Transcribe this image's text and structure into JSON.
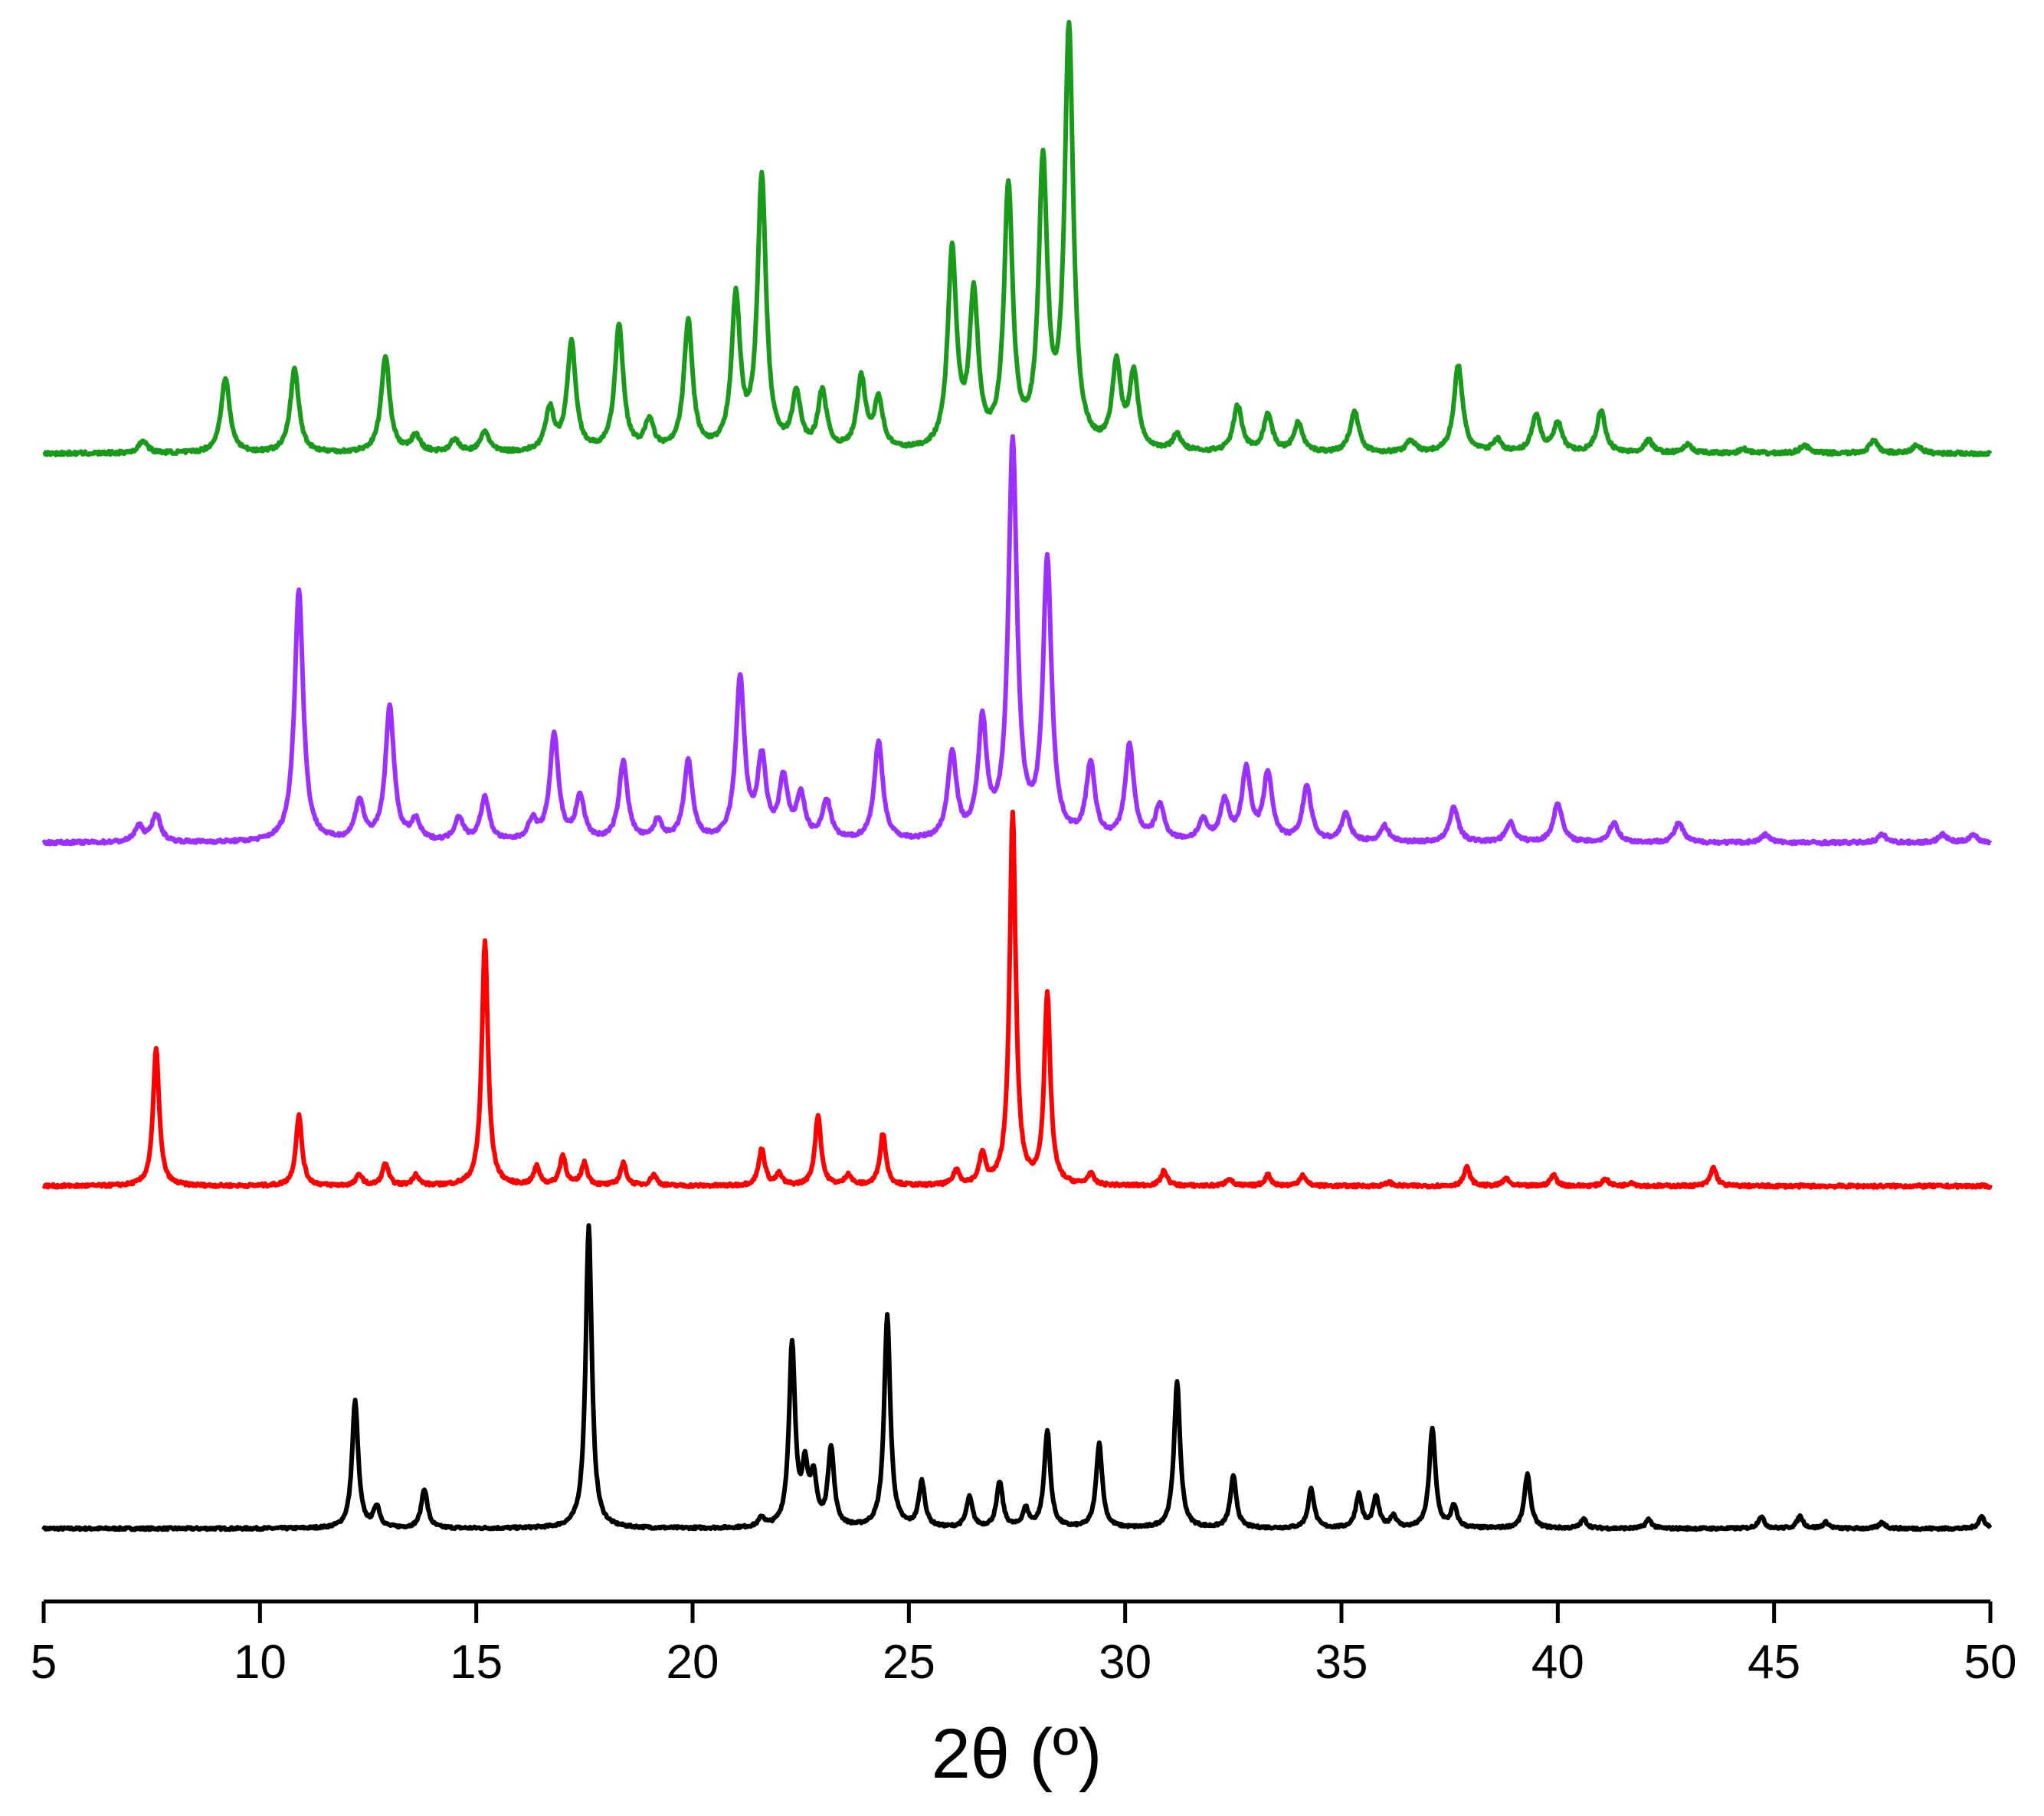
{
  "chart_data": {
    "type": "line",
    "title": "",
    "xlabel": "2θ (º)",
    "ylabel": "",
    "xlim": [
      5,
      50
    ],
    "xticks": [
      "5",
      "10",
      "15",
      "20",
      "25",
      "30",
      "35",
      "40",
      "45",
      "50"
    ],
    "grid": false,
    "legend": "none",
    "y_units": "relative intensity (0 = trace baseline, 1 = tallest peak), traces stacked with vertical offsets",
    "series": [
      {
        "color": "#000000",
        "baseline": 0.0,
        "peaks": [
          [
            12.2,
            0.42
          ],
          [
            12.7,
            0.07
          ],
          [
            13.8,
            0.13
          ],
          [
            17.6,
            1.0
          ],
          [
            21.6,
            0.03
          ],
          [
            22.3,
            0.6
          ],
          [
            22.6,
            0.18
          ],
          [
            22.8,
            0.15
          ],
          [
            23.2,
            0.26
          ],
          [
            24.5,
            0.7
          ],
          [
            25.3,
            0.15
          ],
          [
            26.4,
            0.1
          ],
          [
            27.1,
            0.15
          ],
          [
            27.7,
            0.06
          ],
          [
            28.2,
            0.32
          ],
          [
            29.4,
            0.28
          ],
          [
            31.2,
            0.48
          ],
          [
            32.5,
            0.17
          ],
          [
            34.3,
            0.13
          ],
          [
            35.4,
            0.11
          ],
          [
            35.8,
            0.1
          ],
          [
            36.2,
            0.04
          ],
          [
            37.1,
            0.33
          ],
          [
            37.6,
            0.07
          ],
          [
            39.3,
            0.18
          ],
          [
            40.6,
            0.03
          ],
          [
            42.1,
            0.03
          ],
          [
            44.7,
            0.04
          ],
          [
            45.6,
            0.04
          ],
          [
            46.2,
            0.02
          ],
          [
            47.5,
            0.02
          ],
          [
            49.8,
            0.04
          ]
        ]
      },
      {
        "color": "#ff0000",
        "baseline": 0.0,
        "peaks": [
          [
            7.6,
            0.37
          ],
          [
            10.9,
            0.19
          ],
          [
            12.3,
            0.03
          ],
          [
            12.9,
            0.06
          ],
          [
            13.6,
            0.03
          ],
          [
            15.2,
            0.66
          ],
          [
            16.4,
            0.05
          ],
          [
            17.0,
            0.08
          ],
          [
            17.5,
            0.06
          ],
          [
            18.4,
            0.06
          ],
          [
            19.1,
            0.03
          ],
          [
            21.6,
            0.1
          ],
          [
            22.0,
            0.03
          ],
          [
            22.9,
            0.19
          ],
          [
            23.6,
            0.03
          ],
          [
            24.4,
            0.14
          ],
          [
            26.1,
            0.04
          ],
          [
            26.7,
            0.08
          ],
          [
            27.4,
            1.0
          ],
          [
            28.2,
            0.51
          ],
          [
            29.2,
            0.03
          ],
          [
            30.9,
            0.04
          ],
          [
            32.4,
            0.02
          ],
          [
            33.3,
            0.03
          ],
          [
            34.1,
            0.03
          ],
          [
            36.1,
            0.01
          ],
          [
            37.9,
            0.05
          ],
          [
            38.8,
            0.02
          ],
          [
            39.9,
            0.03
          ],
          [
            41.1,
            0.02
          ],
          [
            41.7,
            0.01
          ],
          [
            43.6,
            0.05
          ]
        ]
      },
      {
        "color": "#9b30ff",
        "baseline": 0.0,
        "peaks": [
          [
            7.2,
            0.04
          ],
          [
            7.6,
            0.07
          ],
          [
            10.9,
            0.64
          ],
          [
            12.3,
            0.1
          ],
          [
            13.0,
            0.34
          ],
          [
            13.6,
            0.05
          ],
          [
            14.6,
            0.06
          ],
          [
            15.2,
            0.11
          ],
          [
            16.3,
            0.05
          ],
          [
            16.8,
            0.27
          ],
          [
            17.4,
            0.11
          ],
          [
            18.4,
            0.2
          ],
          [
            19.2,
            0.05
          ],
          [
            19.9,
            0.2
          ],
          [
            21.1,
            0.41
          ],
          [
            21.6,
            0.2
          ],
          [
            22.1,
            0.15
          ],
          [
            22.5,
            0.11
          ],
          [
            23.1,
            0.1
          ],
          [
            24.3,
            0.25
          ],
          [
            26.0,
            0.22
          ],
          [
            26.7,
            0.29
          ],
          [
            27.4,
            1.0
          ],
          [
            28.2,
            0.7
          ],
          [
            29.2,
            0.19
          ],
          [
            30.1,
            0.24
          ],
          [
            30.8,
            0.09
          ],
          [
            31.8,
            0.05
          ],
          [
            32.3,
            0.1
          ],
          [
            32.8,
            0.18
          ],
          [
            33.3,
            0.17
          ],
          [
            34.2,
            0.14
          ],
          [
            35.1,
            0.07
          ],
          [
            36.0,
            0.04
          ],
          [
            37.6,
            0.09
          ],
          [
            38.9,
            0.05
          ],
          [
            40.0,
            0.1
          ],
          [
            41.3,
            0.05
          ],
          [
            42.8,
            0.05
          ],
          [
            44.8,
            0.02
          ],
          [
            47.5,
            0.02
          ],
          [
            48.9,
            0.02
          ],
          [
            49.6,
            0.02
          ]
        ]
      },
      {
        "color": "#1a9a1a",
        "baseline": 0.0,
        "peaks": [
          [
            7.3,
            0.03
          ],
          [
            9.2,
            0.18
          ],
          [
            10.8,
            0.2
          ],
          [
            12.9,
            0.23
          ],
          [
            13.6,
            0.04
          ],
          [
            14.5,
            0.03
          ],
          [
            15.2,
            0.05
          ],
          [
            16.7,
            0.1
          ],
          [
            17.2,
            0.26
          ],
          [
            18.3,
            0.3
          ],
          [
            19.0,
            0.07
          ],
          [
            19.9,
            0.31
          ],
          [
            21.0,
            0.36
          ],
          [
            21.6,
            0.65
          ],
          [
            22.4,
            0.13
          ],
          [
            23.0,
            0.14
          ],
          [
            23.9,
            0.17
          ],
          [
            24.3,
            0.12
          ],
          [
            26.0,
            0.47
          ],
          [
            26.5,
            0.36
          ],
          [
            27.3,
            0.62
          ],
          [
            28.1,
            0.67
          ],
          [
            28.7,
            1.0
          ],
          [
            29.8,
            0.2
          ],
          [
            30.2,
            0.18
          ],
          [
            31.2,
            0.04
          ],
          [
            32.6,
            0.11
          ],
          [
            33.3,
            0.09
          ],
          [
            34.0,
            0.07
          ],
          [
            35.3,
            0.1
          ],
          [
            36.6,
            0.03
          ],
          [
            37.7,
            0.21
          ],
          [
            38.6,
            0.03
          ],
          [
            39.5,
            0.09
          ],
          [
            40.0,
            0.07
          ],
          [
            41.0,
            0.1
          ],
          [
            42.1,
            0.03
          ],
          [
            43.0,
            0.02
          ],
          [
            44.3,
            0.01
          ],
          [
            45.7,
            0.02
          ],
          [
            47.3,
            0.03
          ],
          [
            48.3,
            0.02
          ]
        ]
      }
    ]
  }
}
